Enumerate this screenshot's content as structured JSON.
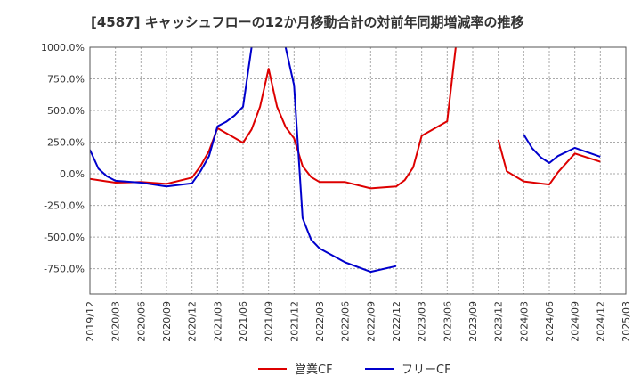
{
  "chart_data": {
    "type": "line",
    "title": "[4587]  キャッシュフローの12か月移動合計の対前年同期増減率の推移",
    "xlabel": "",
    "ylabel": "",
    "ylim": [
      -950,
      1000
    ],
    "yticks": [
      1000,
      750,
      500,
      250,
      0,
      -250,
      -500,
      -750
    ],
    "ytick_labels": [
      "1000.0%",
      "750.0%",
      "500.0%",
      "250.0%",
      "0.0%",
      "-250.0%",
      "-500.0%",
      "-750.0%"
    ],
    "x_start": "2019/12",
    "x_end": "2025/03",
    "xtick_labels": [
      "2019/12",
      "2020/03",
      "2020/06",
      "2020/09",
      "2020/12",
      "2021/03",
      "2021/06",
      "2021/09",
      "2021/12",
      "2022/03",
      "2022/06",
      "2022/09",
      "2022/12",
      "2023/03",
      "2023/06",
      "2023/09",
      "2023/12",
      "2024/03",
      "2024/06",
      "2024/09",
      "2024/12",
      "2025/03"
    ],
    "legend_position": "bottom-center",
    "grid": true,
    "series": [
      {
        "name": "営業CF",
        "color": "#dd0000",
        "points": [
          [
            "2019/12",
            -40
          ],
          [
            "2020/02",
            -60
          ],
          [
            "2020/03",
            -70
          ],
          [
            "2020/06",
            -65
          ],
          [
            "2020/09",
            -80
          ],
          [
            "2020/12",
            -30
          ],
          [
            "2021/01",
            60
          ],
          [
            "2021/02",
            180
          ],
          [
            "2021/03",
            360
          ],
          [
            "2021/06",
            245
          ],
          [
            "2021/07",
            350
          ],
          [
            "2021/08",
            530
          ],
          [
            "2021/09",
            830
          ],
          [
            "2021/10",
            530
          ],
          [
            "2021/11",
            370
          ],
          [
            "2021/12",
            280
          ],
          [
            "2022/01",
            60
          ],
          [
            "2022/02",
            -25
          ],
          [
            "2022/03",
            -65
          ],
          [
            "2022/06",
            -65
          ],
          [
            "2022/09",
            -115
          ],
          [
            "2022/12",
            -100
          ],
          [
            "2023/01",
            -50
          ],
          [
            "2023/02",
            50
          ],
          [
            "2023/03",
            300
          ],
          [
            "2023/06",
            415
          ],
          [
            "2023/07",
            1000
          ],
          null,
          [
            "2023/12",
            270
          ],
          [
            "2024/01",
            20
          ],
          [
            "2024/03",
            -60
          ],
          [
            "2024/06",
            -85
          ],
          [
            "2024/07",
            10
          ],
          [
            "2024/09",
            160
          ],
          [
            "2024/12",
            95
          ]
        ]
      },
      {
        "name": "フリーCF",
        "color": "#0000cc",
        "points": [
          [
            "2019/12",
            190
          ],
          [
            "2020/01",
            40
          ],
          [
            "2020/02",
            -20
          ],
          [
            "2020/03",
            -55
          ],
          [
            "2020/06",
            -70
          ],
          [
            "2020/09",
            -100
          ],
          [
            "2020/12",
            -75
          ],
          [
            "2021/01",
            20
          ],
          [
            "2021/02",
            140
          ],
          [
            "2021/03",
            375
          ],
          [
            "2021/04",
            410
          ],
          [
            "2021/05",
            460
          ],
          [
            "2021/06",
            530
          ],
          [
            "2021/07",
            1000
          ],
          null,
          [
            "2021/11",
            1000
          ],
          [
            "2021/12",
            700
          ],
          [
            "2022/01",
            -350
          ],
          [
            "2022/02",
            -520
          ],
          [
            "2022/03",
            -590
          ],
          [
            "2022/06",
            -700
          ],
          [
            "2022/09",
            -775
          ],
          [
            "2022/12",
            -730
          ],
          null,
          [
            "2024/03",
            310
          ],
          [
            "2024/04",
            200
          ],
          [
            "2024/05",
            130
          ],
          [
            "2024/06",
            85
          ],
          [
            "2024/07",
            140
          ],
          [
            "2024/09",
            205
          ],
          [
            "2024/12",
            135
          ]
        ]
      }
    ]
  }
}
